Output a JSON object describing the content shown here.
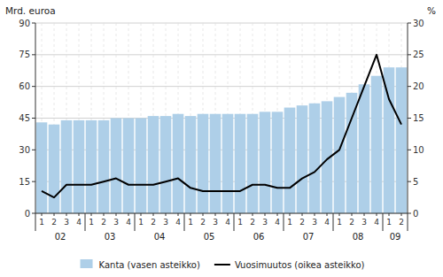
{
  "chart_data": {
    "type": "bar",
    "categories": [
      "1",
      "2",
      "3",
      "4",
      "1",
      "2",
      "3",
      "4",
      "1",
      "2",
      "3",
      "4",
      "1",
      "2",
      "3",
      "4",
      "1",
      "2",
      "3",
      "4",
      "1",
      "2",
      "3",
      "4",
      "1",
      "2",
      "3",
      "4",
      "1",
      "2"
    ],
    "category_groups": [
      "02",
      "02",
      "02",
      "02",
      "03",
      "03",
      "03",
      "03",
      "04",
      "04",
      "04",
      "04",
      "05",
      "05",
      "05",
      "05",
      "06",
      "06",
      "06",
      "06",
      "07",
      "07",
      "07",
      "07",
      "08",
      "08",
      "08",
      "08",
      "09",
      "09"
    ],
    "series": [
      {
        "name": "Kanta (vasen asteikko)",
        "type": "bar",
        "color": "#aecfe8",
        "values": [
          43,
          42,
          44,
          44,
          44,
          44,
          45,
          45,
          45,
          46,
          46,
          47,
          46,
          47,
          47,
          47,
          47,
          47,
          48,
          48,
          50,
          51,
          52,
          53,
          55,
          57,
          61,
          65,
          69,
          69
        ]
      },
      {
        "name": "Vuosimuutos (oikea asteikko)",
        "type": "line",
        "color": "#000000",
        "axis": "y2",
        "values": [
          3.5,
          2.5,
          4.5,
          4.5,
          4.5,
          5.0,
          5.5,
          4.5,
          4.5,
          4.5,
          5.0,
          5.5,
          4.0,
          3.5,
          3.5,
          3.5,
          3.5,
          4.5,
          4.5,
          4.0,
          4.0,
          5.5,
          6.5,
          8.5,
          10.0,
          15.0,
          20.0,
          25.0,
          18.0,
          14.0
        ]
      }
    ],
    "y_label": "Mrd. euroa",
    "y2_label": "%",
    "ylim": [
      0,
      90
    ],
    "yticks": [
      0,
      15,
      30,
      45,
      60,
      75,
      90
    ],
    "y2lim": [
      0,
      30
    ],
    "y2ticks": [
      0,
      5,
      10,
      15,
      20,
      25,
      30
    ],
    "grid": true,
    "legend": "bottom"
  }
}
